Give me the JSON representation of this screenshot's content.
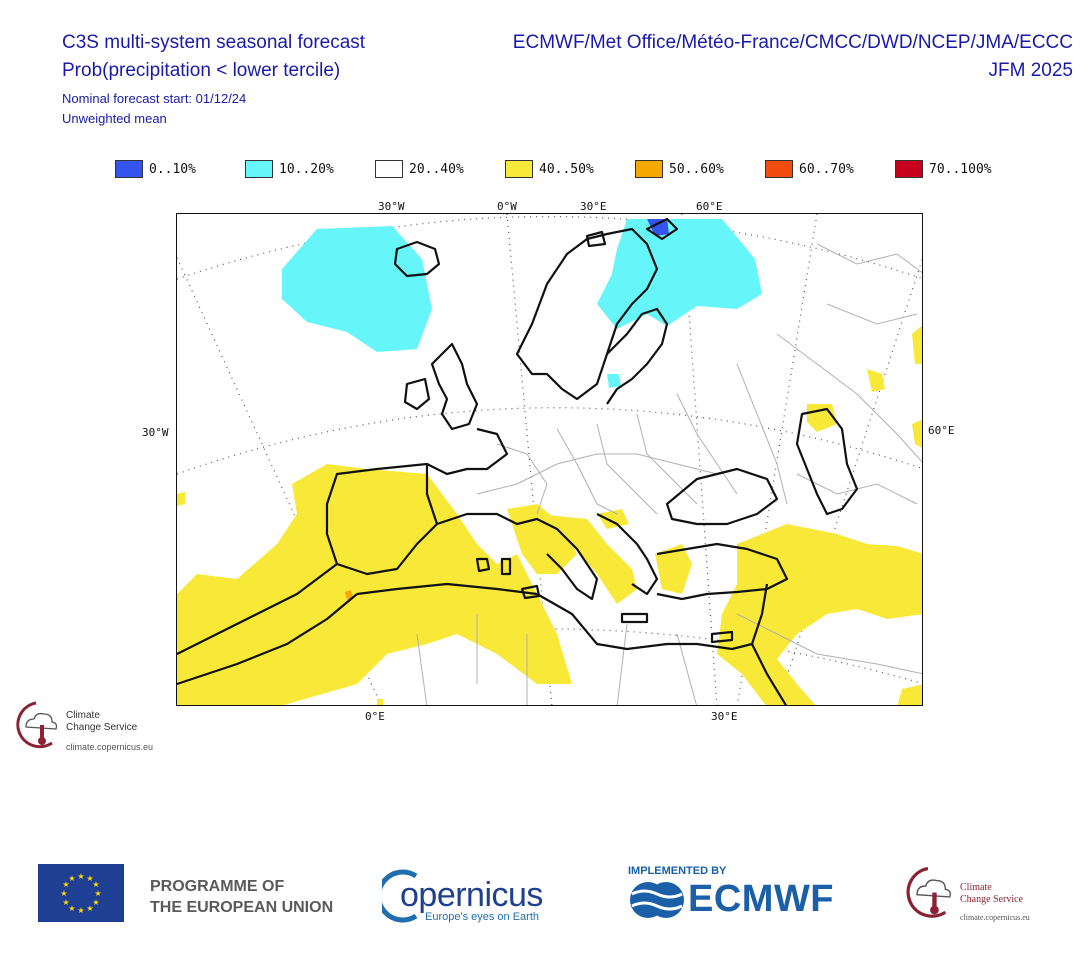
{
  "header": {
    "title_line1": "C3S multi-system seasonal forecast",
    "title_line2": "Prob(precipitation < lower tercile)",
    "start": "Nominal forecast start: 01/12/24",
    "mean": "Unweighted mean",
    "centres": "ECMWF/Met Office/Météo-France/CMCC/DWD/NCEP/JMA/ECCC",
    "period": "JFM 2025"
  },
  "legend": [
    {
      "label": "0..10%",
      "color": "#3355ee"
    },
    {
      "label": "10..20%",
      "color": "#66f5f8"
    },
    {
      "label": "20..40%",
      "color": "#ffffff"
    },
    {
      "label": "40..50%",
      "color": "#f8e838"
    },
    {
      "label": "50..60%",
      "color": "#f5a800"
    },
    {
      "label": "60..70%",
      "color": "#f24d0e"
    },
    {
      "label": "70..100%",
      "color": "#c8001e"
    }
  ],
  "map": {
    "top_ticks": [
      "30°W",
      "0°W",
      "30°E",
      "60°E"
    ],
    "bottom_ticks": [
      "0°E",
      "30°E"
    ],
    "left_ticks": [
      "30°W"
    ],
    "right_ticks": [
      "60°E"
    ],
    "colors": {
      "land_border": "#111111",
      "country": "#b0b0b0",
      "grid": "#555555"
    }
  },
  "map_logo": {
    "line1": "Climate",
    "line2": "Change Service",
    "url": "climate.copernicus.eu"
  },
  "footer": {
    "eu_line1": "PROGRAMME OF",
    "eu_line2": "THE EUROPEAN UNION",
    "copernicus": "opernicus",
    "copernicus_tagline": "Europe's eyes on Earth",
    "implemented_by": "IMPLEMENTED BY",
    "ecmwf": "ECMWF",
    "c3s_line1": "Climate",
    "c3s_line2": "Change Service",
    "c3s_url": "climate.copernicus.eu"
  }
}
